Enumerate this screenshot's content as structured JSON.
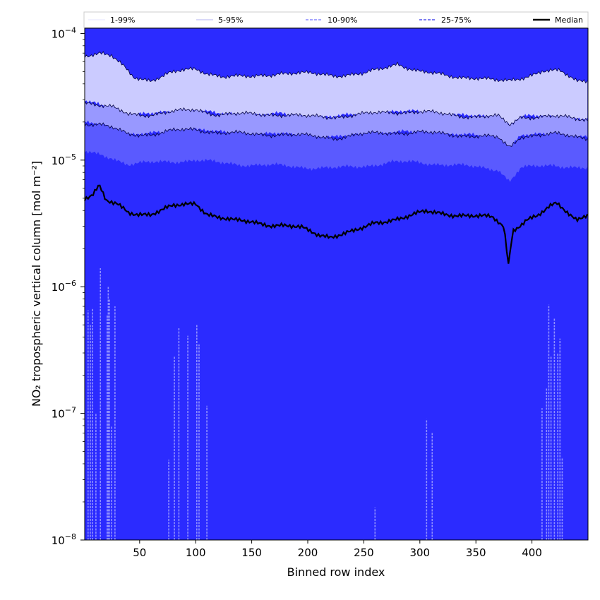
{
  "chart_data": {
    "type": "area",
    "title": "",
    "xlabel": "Binned row index",
    "ylabel": "NO₂ tropospheric vertical column [mol m⁻²]",
    "xlim": [
      1,
      450
    ],
    "ylim": [
      1e-08,
      0.00011
    ],
    "yscale": "log",
    "x_ticks": [
      50,
      100,
      150,
      200,
      250,
      300,
      350,
      400
    ],
    "y_ticks": [
      {
        "value": 1e-08,
        "label_base": "10",
        "label_exp": "−8"
      },
      {
        "value": 1e-07,
        "label_base": "10",
        "label_exp": "−7"
      },
      {
        "value": 1e-06,
        "label_base": "10",
        "label_exp": "−6"
      },
      {
        "value": 1e-05,
        "label_base": "10",
        "label_exp": "−5"
      },
      {
        "value": 0.0001,
        "label_base": "10",
        "label_exp": "−4"
      }
    ],
    "legend": {
      "placement": "top, full width",
      "entries": [
        {
          "label": "1-99%",
          "color": "#dcdcff",
          "style": "thin solid"
        },
        {
          "label": "5-95%",
          "color": "#9a9aee",
          "style": "thin solid"
        },
        {
          "label": "10-90%",
          "color": "#8888ff",
          "style": "dashed"
        },
        {
          "label": "25-75%",
          "color": "#5050ee",
          "style": "dashed"
        },
        {
          "label": "Median",
          "color": "#000000",
          "style": "thick solid"
        }
      ]
    },
    "bands": [
      {
        "name": "1-99%",
        "color": "#2b2bff",
        "lower": [
          [
            1,
            1e-08
          ],
          [
            450,
            1e-08
          ]
        ],
        "upper": [
          [
            1,
            1e-08
          ],
          [
            450,
            1e-08
          ]
        ]
      },
      {
        "name": "5-95%",
        "color": "#cbcbff",
        "lower": [
          [
            1,
            2.9e-05
          ],
          [
            15,
            2.7e-05
          ],
          [
            25,
            2.6e-05
          ],
          [
            40,
            2.3e-05
          ],
          [
            60,
            2.3e-05
          ],
          [
            80,
            2.4e-05
          ],
          [
            100,
            2.5e-05
          ],
          [
            120,
            2.3e-05
          ],
          [
            150,
            2.3e-05
          ],
          [
            175,
            2.3e-05
          ],
          [
            200,
            2.2e-05
          ],
          [
            225,
            2.2e-05
          ],
          [
            250,
            2.3e-05
          ],
          [
            275,
            2.4e-05
          ],
          [
            300,
            2.4e-05
          ],
          [
            325,
            2.3e-05
          ],
          [
            350,
            2.2e-05
          ],
          [
            370,
            2.2e-05
          ],
          [
            380,
            1.9e-05
          ],
          [
            390,
            2.2e-05
          ],
          [
            420,
            2.2e-05
          ],
          [
            450,
            2.1e-05
          ]
        ],
        "upper": [
          [
            1,
            6.8e-05
          ],
          [
            15,
            7e-05
          ],
          [
            25,
            6.6e-05
          ],
          [
            35,
            5.5e-05
          ],
          [
            45,
            4.5e-05
          ],
          [
            60,
            4.3e-05
          ],
          [
            75,
            4.8e-05
          ],
          [
            90,
            5.1e-05
          ],
          [
            100,
            5.2e-05
          ],
          [
            110,
            4.9e-05
          ],
          [
            125,
            4.6e-05
          ],
          [
            150,
            4.5e-05
          ],
          [
            175,
            4.9e-05
          ],
          [
            200,
            4.8e-05
          ],
          [
            225,
            4.7e-05
          ],
          [
            250,
            4.8e-05
          ],
          [
            265,
            5.2e-05
          ],
          [
            280,
            5.8e-05
          ],
          [
            300,
            5e-05
          ],
          [
            325,
            4.6e-05
          ],
          [
            350,
            4.5e-05
          ],
          [
            370,
            4.2e-05
          ],
          [
            380,
            4.2e-05
          ],
          [
            395,
            4.6e-05
          ],
          [
            410,
            5.1e-05
          ],
          [
            425,
            5e-05
          ],
          [
            440,
            4.2e-05
          ],
          [
            450,
            4.3e-05
          ]
        ]
      },
      {
        "name": "10-90%",
        "color": "#9898ff",
        "lower": [
          [
            1,
            1.95e-05
          ],
          [
            15,
            1.9e-05
          ],
          [
            25,
            1.8e-05
          ],
          [
            40,
            1.6e-05
          ],
          [
            60,
            1.6e-05
          ],
          [
            80,
            1.7e-05
          ],
          [
            100,
            1.75e-05
          ],
          [
            120,
            1.65e-05
          ],
          [
            150,
            1.6e-05
          ],
          [
            175,
            1.6e-05
          ],
          [
            200,
            1.55e-05
          ],
          [
            225,
            1.5e-05
          ],
          [
            250,
            1.6e-05
          ],
          [
            275,
            1.65e-05
          ],
          [
            300,
            1.65e-05
          ],
          [
            325,
            1.6e-05
          ],
          [
            350,
            1.55e-05
          ],
          [
            370,
            1.5e-05
          ],
          [
            380,
            1.25e-05
          ],
          [
            390,
            1.55e-05
          ],
          [
            420,
            1.6e-05
          ],
          [
            450,
            1.5e-05
          ]
        ],
        "upper": [
          [
            1,
            2.9e-05
          ],
          [
            15,
            2.7e-05
          ],
          [
            25,
            2.6e-05
          ],
          [
            40,
            2.3e-05
          ],
          [
            60,
            2.3e-05
          ],
          [
            80,
            2.4e-05
          ],
          [
            100,
            2.5e-05
          ],
          [
            120,
            2.3e-05
          ],
          [
            150,
            2.3e-05
          ],
          [
            175,
            2.3e-05
          ],
          [
            200,
            2.2e-05
          ],
          [
            225,
            2.2e-05
          ],
          [
            250,
            2.3e-05
          ],
          [
            275,
            2.4e-05
          ],
          [
            300,
            2.4e-05
          ],
          [
            325,
            2.3e-05
          ],
          [
            350,
            2.2e-05
          ],
          [
            370,
            2.2e-05
          ],
          [
            380,
            1.9e-05
          ],
          [
            390,
            2.2e-05
          ],
          [
            420,
            2.2e-05
          ],
          [
            450,
            2.1e-05
          ]
        ]
      },
      {
        "name": "25-75%",
        "color": "#5a5aff",
        "lower": [
          [
            1,
            1.15e-05
          ],
          [
            15,
            1.1e-05
          ],
          [
            25,
            1.05e-05
          ],
          [
            40,
            9.3e-06
          ],
          [
            60,
            9.5e-06
          ],
          [
            80,
            9.8e-06
          ],
          [
            100,
            1e-05
          ],
          [
            120,
            9.5e-06
          ],
          [
            150,
            9.2e-06
          ],
          [
            175,
            9e-06
          ],
          [
            200,
            8.8e-06
          ],
          [
            225,
            8.6e-06
          ],
          [
            250,
            9e-06
          ],
          [
            275,
            9.6e-06
          ],
          [
            300,
            9.6e-06
          ],
          [
            325,
            9.2e-06
          ],
          [
            350,
            8.8e-06
          ],
          [
            370,
            8.5e-06
          ],
          [
            380,
            6.8e-06
          ],
          [
            390,
            8.6e-06
          ],
          [
            420,
            9.2e-06
          ],
          [
            450,
            8.5e-06
          ]
        ],
        "upper": [
          [
            1,
            1.95e-05
          ],
          [
            15,
            1.9e-05
          ],
          [
            25,
            1.8e-05
          ],
          [
            40,
            1.6e-05
          ],
          [
            60,
            1.6e-05
          ],
          [
            80,
            1.7e-05
          ],
          [
            100,
            1.75e-05
          ],
          [
            120,
            1.65e-05
          ],
          [
            150,
            1.6e-05
          ],
          [
            175,
            1.6e-05
          ],
          [
            200,
            1.55e-05
          ],
          [
            225,
            1.5e-05
          ],
          [
            250,
            1.6e-05
          ],
          [
            275,
            1.65e-05
          ],
          [
            300,
            1.65e-05
          ],
          [
            325,
            1.6e-05
          ],
          [
            350,
            1.55e-05
          ],
          [
            370,
            1.5e-05
          ],
          [
            380,
            1.25e-05
          ],
          [
            390,
            1.55e-05
          ],
          [
            420,
            1.6e-05
          ],
          [
            450,
            1.5e-05
          ]
        ]
      }
    ],
    "median": [
      [
        1,
        5e-06
      ],
      [
        8,
        5.3e-06
      ],
      [
        14,
        6.2e-06
      ],
      [
        20,
        4.7e-06
      ],
      [
        30,
        4.5e-06
      ],
      [
        40,
        3.9e-06
      ],
      [
        50,
        3.8e-06
      ],
      [
        60,
        3.7e-06
      ],
      [
        70,
        4e-06
      ],
      [
        80,
        4.3e-06
      ],
      [
        90,
        4.5e-06
      ],
      [
        100,
        4.6e-06
      ],
      [
        110,
        3.8e-06
      ],
      [
        120,
        3.5e-06
      ],
      [
        135,
        3.3e-06
      ],
      [
        150,
        3.3e-06
      ],
      [
        165,
        3.1e-06
      ],
      [
        180,
        3e-06
      ],
      [
        195,
        2.9e-06
      ],
      [
        210,
        2.6e-06
      ],
      [
        220,
        2.5e-06
      ],
      [
        230,
        2.6e-06
      ],
      [
        240,
        2.7e-06
      ],
      [
        250,
        2.9e-06
      ],
      [
        260,
        3.2e-06
      ],
      [
        275,
        3.4e-06
      ],
      [
        290,
        3.6e-06
      ],
      [
        305,
        3.9e-06
      ],
      [
        320,
        3.8e-06
      ],
      [
        335,
        3.7e-06
      ],
      [
        350,
        3.6e-06
      ],
      [
        365,
        3.5e-06
      ],
      [
        375,
        3e-06
      ],
      [
        379,
        1.5e-06
      ],
      [
        383,
        2.8e-06
      ],
      [
        395,
        3.4e-06
      ],
      [
        405,
        3.6e-06
      ],
      [
        415,
        4.2e-06
      ],
      [
        422,
        4.5e-06
      ],
      [
        430,
        4e-06
      ],
      [
        440,
        3.4e-06
      ],
      [
        450,
        3.8e-06
      ]
    ],
    "spikes": [
      [
        4,
        6.5e-07
      ],
      [
        6,
        5e-07
      ],
      [
        8,
        6.8e-07
      ],
      [
        11,
        1e-07
      ],
      [
        15,
        1.4e-06
      ],
      [
        21,
        6e-07
      ],
      [
        22,
        1e-06
      ],
      [
        23,
        8e-07
      ],
      [
        25,
        8e-08
      ],
      [
        28,
        7e-07
      ],
      [
        76,
        4.3e-08
      ],
      [
        81,
        2.8e-07
      ],
      [
        85,
        4.7e-07
      ],
      [
        93,
        4.1e-07
      ],
      [
        101,
        5e-07
      ],
      [
        103,
        3.5e-07
      ],
      [
        110,
        1.15e-07
      ],
      [
        260,
        1.8e-08
      ],
      [
        306,
        9e-08
      ],
      [
        311,
        7e-08
      ],
      [
        409,
        1.1e-07
      ],
      [
        413,
        1.6e-07
      ],
      [
        415,
        7.2e-07
      ],
      [
        417,
        2.8e-07
      ],
      [
        420,
        5.6e-07
      ],
      [
        423,
        3e-07
      ],
      [
        425,
        3.9e-07
      ],
      [
        427,
        4.5e-08
      ]
    ]
  }
}
